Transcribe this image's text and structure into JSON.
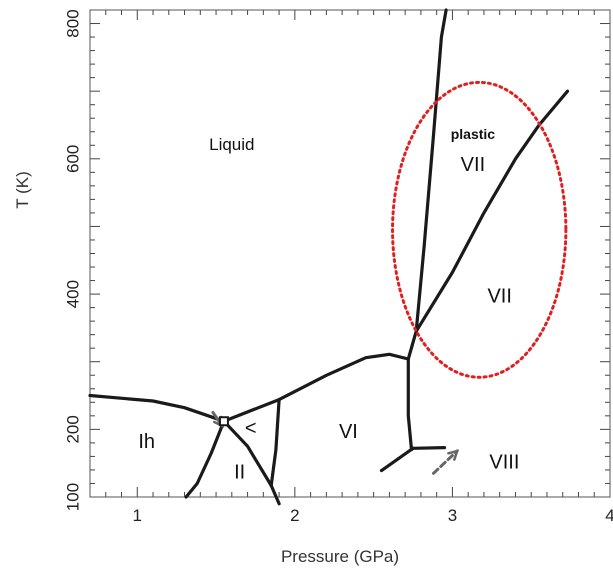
{
  "chart_data": {
    "type": "phase-diagram",
    "xlabel": "Pressure (GPa)",
    "ylabel": "T (K)",
    "xlim": [
      0.7,
      4.0
    ],
    "ylim": [
      100,
      820
    ],
    "x_ticks": [
      {
        "value": 1,
        "label": "1"
      },
      {
        "value": 2,
        "label": "2"
      },
      {
        "value": 3,
        "label": "3"
      },
      {
        "value": 4,
        "label": "4"
      }
    ],
    "y_ticks": [
      {
        "value": 100,
        "label": "100"
      },
      {
        "value": 200,
        "label": "200"
      },
      {
        "value": 400,
        "label": "400"
      },
      {
        "value": 600,
        "label": "600"
      },
      {
        "value": 800,
        "label": "800"
      }
    ],
    "boundaries": [
      {
        "name": "ih-liquid",
        "points": [
          [
            0.7,
            250
          ],
          [
            1.1,
            242
          ],
          [
            1.3,
            232
          ],
          [
            1.55,
            212
          ]
        ]
      },
      {
        "name": "liquid-iii",
        "points": [
          [
            1.55,
            212
          ],
          [
            1.9,
            244
          ]
        ]
      },
      {
        "name": "liquid-vi",
        "points": [
          [
            1.9,
            244
          ],
          [
            2.2,
            280
          ],
          [
            2.45,
            306
          ],
          [
            2.6,
            311
          ],
          [
            2.72,
            304
          ]
        ]
      },
      {
        "name": "vi-liquid-high",
        "points": [
          [
            2.72,
            304
          ],
          [
            2.77,
            345
          ],
          [
            2.82,
            470
          ],
          [
            2.88,
            635
          ],
          [
            2.93,
            780
          ],
          [
            2.96,
            820
          ]
        ]
      },
      {
        "name": "vii-plastic-vii",
        "points": [
          [
            2.77,
            345
          ],
          [
            3.0,
            432
          ],
          [
            3.2,
            520
          ],
          [
            3.4,
            600
          ],
          [
            3.55,
            650
          ],
          [
            3.73,
            700
          ]
        ]
      },
      {
        "name": "vi-vii-viii",
        "points": [
          [
            2.72,
            304
          ],
          [
            2.72,
            220
          ],
          [
            2.74,
            170
          ],
          [
            2.75,
            172
          ]
        ]
      },
      {
        "name": "vii-viii",
        "points": [
          [
            2.75,
            172
          ],
          [
            2.95,
            173
          ]
        ]
      },
      {
        "name": "viii-vi-low",
        "points": [
          [
            2.75,
            172
          ],
          [
            2.55,
            139
          ]
        ]
      },
      {
        "name": "ih-ii",
        "points": [
          [
            1.55,
            212
          ],
          [
            1.47,
            165
          ],
          [
            1.38,
            120
          ],
          [
            1.31,
            100
          ]
        ]
      },
      {
        "name": "ii-iii",
        "points": [
          [
            1.55,
            212
          ],
          [
            1.7,
            175
          ],
          [
            1.85,
            117
          ]
        ]
      },
      {
        "name": "iii-v",
        "points": [
          [
            1.9,
            244
          ],
          [
            1.88,
            170
          ],
          [
            1.85,
            117
          ]
        ]
      },
      {
        "name": "ii-vi",
        "points": [
          [
            1.85,
            117
          ],
          [
            1.9,
            90
          ]
        ]
      }
    ],
    "regions": [
      {
        "label": "Liquid",
        "x": 1.6,
        "y": 620
      },
      {
        "label": "Ih",
        "x": 1.06,
        "y": 180
      },
      {
        "label": "II",
        "x": 1.65,
        "y": 135
      },
      {
        "label": "<",
        "x": 1.72,
        "y": 200
      },
      {
        "label": "VI",
        "x": 2.34,
        "y": 195
      },
      {
        "label": "VII",
        "x": 3.13,
        "y": 590
      },
      {
        "label": "plastic",
        "x": 3.13,
        "y": 635
      },
      {
        "label": "VII",
        "x": 3.3,
        "y": 395
      },
      {
        "label": "VIII",
        "x": 3.33,
        "y": 150
      }
    ],
    "highlight_ellipse": {
      "cx": 3.17,
      "cy": 495,
      "rx": 0.55,
      "ry": 218,
      "color": "#e02020"
    },
    "arrows": [
      {
        "name": "arrow-ih-point",
        "from": [
          1.48,
          225
        ],
        "to": [
          1.54,
          205
        ],
        "color": "#666666"
      },
      {
        "name": "arrow-viii",
        "from": [
          2.88,
          135
        ],
        "to": [
          3.03,
          168
        ],
        "color": "#666666"
      }
    ]
  }
}
